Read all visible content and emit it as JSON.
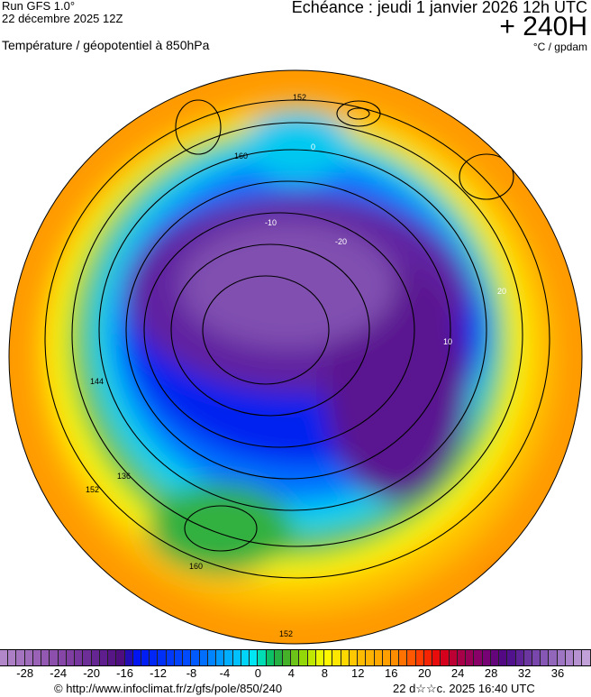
{
  "header": {
    "run": "Run GFS 1.0°",
    "run_date": "22 décembre 2025 12Z",
    "variable": "Température / géopotentiel à 850hPa",
    "valid": "Echéance : jeudi 1 janvier 2026 12h UTC",
    "lead": "+ 240H",
    "units": "°C / gpdam"
  },
  "map": {
    "projection": "polar stereographic (north pole)",
    "contour_labels": [
      "152",
      "160",
      "144",
      "136",
      "152",
      "160",
      "152",
      "-20",
      "-10",
      "0",
      "10",
      "20"
    ]
  },
  "colorbar": {
    "min": -31,
    "max": 40,
    "tick_labels": [
      "-28",
      "-24",
      "-20",
      "-16",
      "-12",
      "-8",
      "-4",
      "0",
      "4",
      "8",
      "12",
      "16",
      "20",
      "24",
      "28",
      "32",
      "36"
    ],
    "tick_values": [
      -28,
      -24,
      -20,
      -16,
      -12,
      -8,
      -4,
      0,
      4,
      8,
      12,
      16,
      20,
      24,
      28,
      32,
      36
    ],
    "color_stops": [
      [
        -31,
        "#b48ccc"
      ],
      [
        -24,
        "#8a4aaa"
      ],
      [
        -18,
        "#5a1a8a"
      ],
      [
        -16,
        "#4a0a78"
      ],
      [
        -15,
        "#0010f0"
      ],
      [
        -8,
        "#0050ff"
      ],
      [
        -3,
        "#00b8ff"
      ],
      [
        0,
        "#00f0f0"
      ],
      [
        1,
        "#00c878"
      ],
      [
        3,
        "#30a830"
      ],
      [
        6,
        "#a8e000"
      ],
      [
        8,
        "#ffff00"
      ],
      [
        12,
        "#ffc000"
      ],
      [
        16,
        "#ff9a00"
      ],
      [
        20,
        "#ff3000"
      ],
      [
        22,
        "#e00010"
      ],
      [
        24,
        "#b00040"
      ],
      [
        27,
        "#800070"
      ],
      [
        30,
        "#4a0a88"
      ],
      [
        34,
        "#8050b0"
      ],
      [
        40,
        "#c8a8dc"
      ]
    ]
  },
  "footer": {
    "url": "© http://www.infoclimat.fr/z/gfs/pole/850/240",
    "generated": "22 d☆☆c. 2025 16:40 UTC"
  }
}
